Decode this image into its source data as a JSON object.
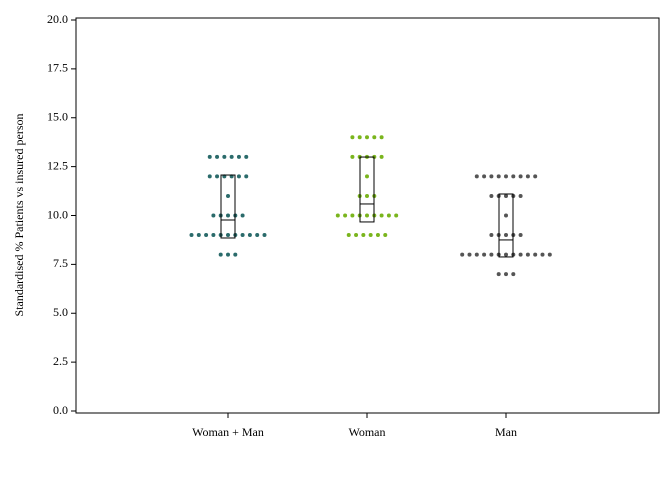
{
  "chart_data": {
    "type": "dotplot",
    "ylabel": "Standardised % Patients vs insured person",
    "categories": [
      "Woman + Man",
      "Woman",
      "Man"
    ],
    "colors": [
      "#2b6b6b",
      "#7ab51d",
      "#555555"
    ],
    "points": [
      [
        13,
        13,
        13,
        13,
        13,
        13,
        12,
        12,
        12,
        12,
        12,
        12,
        11,
        10,
        10,
        10,
        10,
        10,
        9,
        9,
        9,
        9,
        9,
        9,
        9,
        9,
        9,
        9,
        9,
        8,
        8,
        8
      ],
      [
        14,
        14,
        14,
        14,
        14,
        13,
        13,
        13,
        13,
        13,
        12,
        11,
        11,
        11,
        10,
        10,
        10,
        10,
        10,
        10,
        10,
        10,
        10,
        9,
        9,
        9,
        9,
        9,
        9
      ],
      [
        12,
        12,
        12,
        12,
        12,
        12,
        12,
        12,
        12,
        11,
        11,
        11,
        11,
        11,
        10,
        9,
        9,
        9,
        9,
        9,
        8,
        8,
        8,
        8,
        8,
        8,
        8,
        8,
        8,
        8,
        8,
        8,
        8,
        7,
        7,
        7
      ]
    ],
    "intervals": [
      {
        "low": 8.85,
        "mid": 9.77,
        "high": 12.07
      },
      {
        "low": 9.67,
        "mid": 10.59,
        "high": 12.99
      },
      {
        "low": 7.88,
        "mid": 8.75,
        "high": 11.1
      }
    ],
    "ylim": [
      0,
      20
    ],
    "yticks": [
      {
        "value": 0,
        "label": "0.0"
      },
      {
        "value": 2.5,
        "label": "2.5"
      },
      {
        "value": 5,
        "label": "5.0"
      },
      {
        "value": 7.5,
        "label": "7.5"
      },
      {
        "value": 10,
        "label": "10.0"
      },
      {
        "value": 12.5,
        "label": "12.5"
      },
      {
        "value": 15,
        "label": "15.0"
      },
      {
        "value": 17.5,
        "label": "17.5"
      },
      {
        "value": 20,
        "label": "20.0"
      }
    ]
  }
}
